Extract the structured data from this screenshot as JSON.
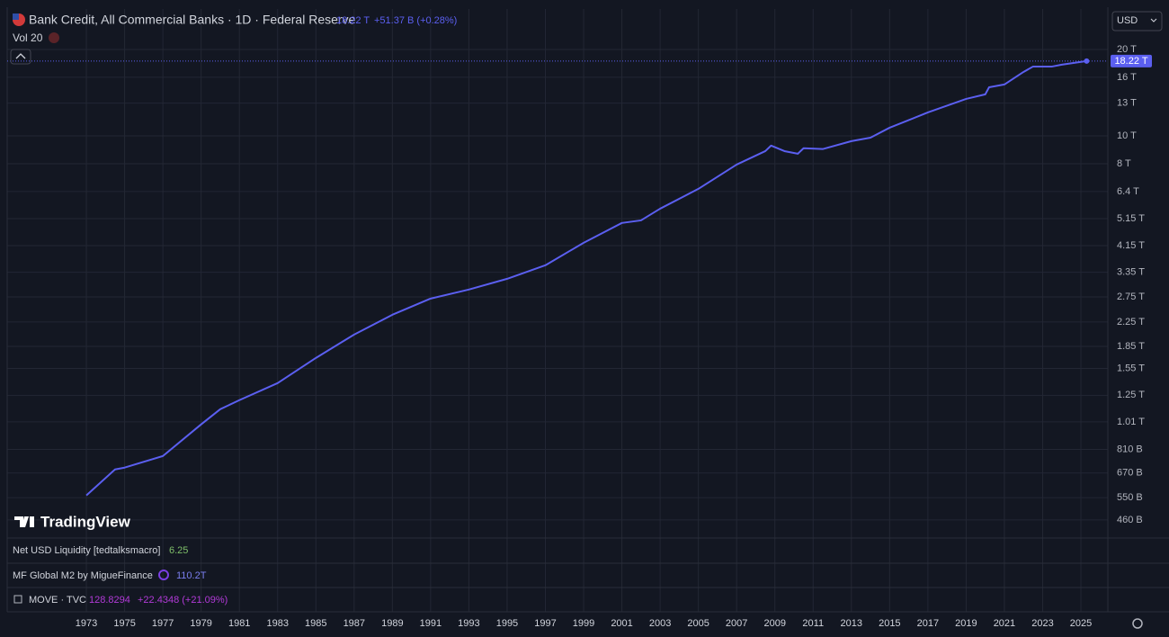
{
  "header": {
    "change": "+51.37 B (+0.28%)",
    "volume": "Vol 20",
    "currency": "USD"
  },
  "logo": "TradingView",
  "indicators": [
    {
      "name": "Net USD Liquidity [tedtalksmacro]",
      "value": "6.25"
    },
    {
      "name": "MF Global M2 by MigueFinance",
      "value": "110.2T"
    },
    {
      "name": "MOVE · TVC",
      "value": "128.8294",
      "change": "+22.4348 (+21.09%)"
    }
  ],
  "chart_data": {
    "type": "line",
    "title": "Bank Credit, All Commercial Banks · 1D · Federal Reserve",
    "last_value_label": "18.22 T",
    "color": "#5b5ff0",
    "log_scale": true,
    "grid": true,
    "x": [
      1973.0,
      1974.5,
      1975.0,
      1977.0,
      1979.0,
      1980.0,
      1981.0,
      1983.0,
      1985.0,
      1987.0,
      1989.0,
      1991.0,
      1993.0,
      1995.0,
      1997.0,
      1999.0,
      2001.0,
      2002.0,
      2003.0,
      2005.0,
      2007.0,
      2008.5,
      2008.8,
      2009.5,
      2010.2,
      2010.5,
      2011.5,
      2013.0,
      2014.0,
      2015.0,
      2017.0,
      2019.0,
      2020.0,
      2020.2,
      2021.0,
      2022.0,
      2022.5,
      2023.5,
      2024.0,
      2025.3
    ],
    "values": [
      560,
      690,
      700,
      768,
      990,
      1118,
      1202,
      1378,
      1686,
      2034,
      2384,
      2714,
      2918,
      3180,
      3544,
      4244,
      4976,
      5080,
      5580,
      6540,
      7946,
      8852,
      9250,
      8852,
      8670,
      9060,
      9000,
      9590,
      9860,
      10680,
      12070,
      13450,
      13950,
      14770,
      15100,
      16700,
      17440,
      17440,
      17700,
      18220
    ],
    "xlim": [
      1968.86,
      2026.41
    ],
    "xticks": [
      1973,
      1975,
      1977,
      1979,
      1981,
      1983,
      1985,
      1987,
      1989,
      1991,
      1993,
      1995,
      1997,
      1999,
      2001,
      2003,
      2005,
      2007,
      2009,
      2011,
      2013,
      2015,
      2017,
      2019,
      2021,
      2023,
      2025
    ],
    "ylim": [
      398,
      27660
    ],
    "yticks": [
      {
        "value": 20000,
        "label": "20 T"
      },
      {
        "value": 16000,
        "label": "16 T"
      },
      {
        "value": 13000,
        "label": "13 T"
      },
      {
        "value": 10000,
        "label": "10 T"
      },
      {
        "value": 8000,
        "label": "8 T"
      },
      {
        "value": 6400,
        "label": "6.4 T"
      },
      {
        "value": 5150,
        "label": "5.15 T"
      },
      {
        "value": 4150,
        "label": "4.15 T"
      },
      {
        "value": 3350,
        "label": "3.35 T"
      },
      {
        "value": 2750,
        "label": "2.75 T"
      },
      {
        "value": 2250,
        "label": "2.25 T"
      },
      {
        "value": 1850,
        "label": "1.85 T"
      },
      {
        "value": 1550,
        "label": "1.55 T"
      },
      {
        "value": 1250,
        "label": "1.25 T"
      },
      {
        "value": 1010,
        "label": "1.01 T"
      },
      {
        "value": 810,
        "label": "810 B"
      },
      {
        "value": 670,
        "label": "670 B"
      },
      {
        "value": 550,
        "label": "550 B"
      },
      {
        "value": 460,
        "label": "460 B"
      }
    ]
  }
}
